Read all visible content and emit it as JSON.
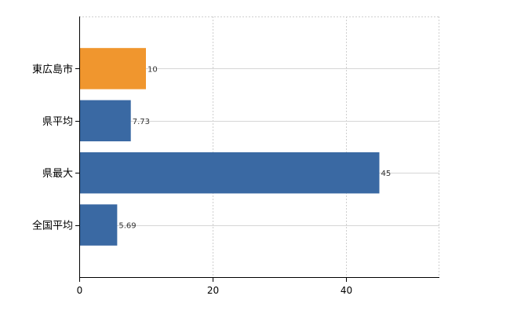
{
  "chart_data": {
    "type": "bar",
    "orientation": "horizontal",
    "categories": [
      "東広島市",
      "県平均",
      "県最大",
      "全国平均"
    ],
    "values": [
      10,
      7.73,
      45,
      5.69
    ],
    "data_labels": [
      "10",
      "7.73",
      "45",
      "5.69"
    ],
    "colors": [
      "#F0962E",
      "#3A69A3",
      "#3A69A3",
      "#3A69A3"
    ],
    "highlight_category": "東広島市",
    "xlim": [
      0,
      54
    ],
    "xticks": [
      0,
      20,
      40
    ],
    "xtick_labels": [
      "0",
      "20",
      "40"
    ],
    "grid": true,
    "grid_style": "dotted",
    "legend": false
  }
}
